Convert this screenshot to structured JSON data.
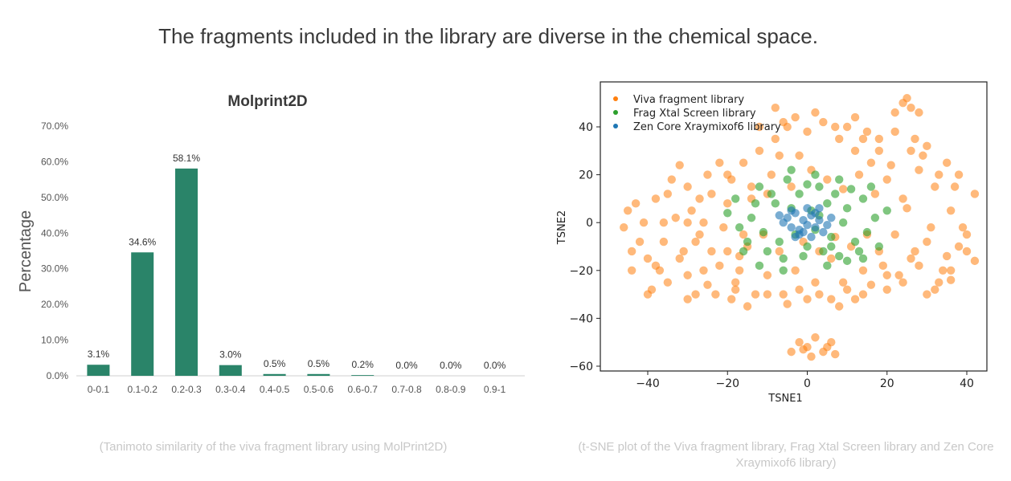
{
  "headline": "The fragments included in the library are diverse in the chemical space.",
  "captions": {
    "left": "(Tanimoto similarity of the viva fragment library using MolPrint2D)",
    "right": "(t-SNE plot of the Viva fragment library, Frag Xtal Screen library and Zen Core Xraymixof6 library)"
  },
  "chart_data": [
    {
      "type": "bar",
      "title": "Molprint2D",
      "ylabel": "Percentage",
      "xlabel": "",
      "categories": [
        "0-0.1",
        "0.1-0.2",
        "0.2-0.3",
        "0.3-0.4",
        "0.4-0.5",
        "0.5-0.6",
        "0.6-0.7",
        "0.7-0.8",
        "0.8-0.9",
        "0.9-1"
      ],
      "values": [
        3.1,
        34.6,
        58.1,
        3.0,
        0.5,
        0.5,
        0.2,
        0.0,
        0.0,
        0.0
      ],
      "value_labels": [
        "3.1%",
        "34.6%",
        "58.1%",
        "3.0%",
        "0.5%",
        "0.5%",
        "0.2%",
        "0.0%",
        "0.0%",
        "0.0%"
      ],
      "yticks": [
        "0.0%",
        "10.0%",
        "20.0%",
        "30.0%",
        "40.0%",
        "50.0%",
        "60.0%",
        "70.0%"
      ],
      "ylim": [
        0,
        70
      ],
      "grid": false,
      "color": "#2a8469"
    },
    {
      "type": "scatter",
      "xlabel": "TSNE1",
      "ylabel": "TSNE2",
      "xlim": [
        -52,
        45
      ],
      "ylim": [
        -62,
        58
      ],
      "xticks": [
        -40,
        -20,
        0,
        20,
        40
      ],
      "yticks": [
        -60,
        -40,
        -20,
        0,
        20,
        40
      ],
      "tick_labels_x": [
        "−40",
        "−20",
        "0",
        "20",
        "40"
      ],
      "tick_labels_y": [
        "−60",
        "−40",
        "−20",
        "0",
        "20",
        "40"
      ],
      "legend_position": "top-left",
      "grid": false,
      "series": [
        {
          "name": "Viva fragment library",
          "color": "#ff7f0e",
          "points": [
            [
              -45,
              5
            ],
            [
              -42,
              -8
            ],
            [
              -40,
              -15
            ],
            [
              -38,
              10
            ],
            [
              -35,
              -25
            ],
            [
              -33,
              2
            ],
            [
              -30,
              15
            ],
            [
              -28,
              -30
            ],
            [
              -27,
              -5
            ],
            [
              -25,
              20
            ],
            [
              -22,
              -18
            ],
            [
              -20,
              8
            ],
            [
              -18,
              -28
            ],
            [
              -16,
              25
            ],
            [
              -15,
              -10
            ],
            [
              -12,
              30
            ],
            [
              -10,
              -22
            ],
            [
              -8,
              35
            ],
            [
              -6,
              -30
            ],
            [
              -5,
              40
            ],
            [
              -3,
              -20
            ],
            [
              -2,
              28
            ],
            [
              0,
              38
            ],
            [
              2,
              -25
            ],
            [
              4,
              42
            ],
            [
              6,
              -15
            ],
            [
              8,
              35
            ],
            [
              10,
              -28
            ],
            [
              12,
              30
            ],
            [
              14,
              -20
            ],
            [
              16,
              25
            ],
            [
              18,
              -12
            ],
            [
              20,
              18
            ],
            [
              22,
              -5
            ],
            [
              24,
              10
            ],
            [
              26,
              -15
            ],
            [
              28,
              22
            ],
            [
              30,
              -8
            ],
            [
              32,
              15
            ],
            [
              34,
              -20
            ],
            [
              36,
              5
            ],
            [
              38,
              -10
            ],
            [
              40,
              -5
            ],
            [
              42,
              12
            ],
            [
              -44,
              -12
            ],
            [
              -41,
              0
            ],
            [
              -37,
              -20
            ],
            [
              -34,
              18
            ],
            [
              -31,
              -12
            ],
            [
              -29,
              5
            ],
            [
              -26,
              -20
            ],
            [
              -24,
              12
            ],
            [
              -21,
              -2
            ],
            [
              -19,
              18
            ],
            [
              -17,
              -14
            ],
            [
              -14,
              10
            ],
            [
              -11,
              -5
            ],
            [
              -9,
              20
            ],
            [
              -7,
              -12
            ],
            [
              -4,
              15
            ],
            [
              -1,
              -8
            ],
            [
              1,
              22
            ],
            [
              3,
              -12
            ],
            [
              5,
              18
            ],
            [
              7,
              -6
            ],
            [
              9,
              14
            ],
            [
              11,
              -10
            ],
            [
              13,
              20
            ],
            [
              15,
              -5
            ],
            [
              17,
              12
            ],
            [
              19,
              -18
            ],
            [
              21,
              24
            ],
            [
              23,
              -22
            ],
            [
              25,
              6
            ],
            [
              27,
              -12
            ],
            [
              29,
              28
            ],
            [
              31,
              -2
            ],
            [
              33,
              20
            ],
            [
              35,
              -14
            ],
            [
              37,
              15
            ],
            [
              39,
              -2
            ],
            [
              -46,
              -2
            ],
            [
              -43,
              8
            ],
            [
              -39,
              -28
            ],
            [
              -36,
              -8
            ],
            [
              -32,
              24
            ],
            [
              -30,
              -22
            ],
            [
              -27,
              10
            ],
            [
              -23,
              -30
            ],
            [
              -20,
              -12
            ],
            [
              -17,
              -20
            ],
            [
              -13,
              -30
            ],
            [
              -10,
              12
            ],
            [
              -7,
              28
            ],
            [
              -5,
              -34
            ],
            [
              -2,
              -28
            ],
            [
              0,
              -32
            ],
            [
              3,
              -30
            ],
            [
              6,
              -32
            ],
            [
              9,
              -25
            ],
            [
              12,
              -32
            ],
            [
              16,
              -26
            ],
            [
              20,
              -28
            ],
            [
              24,
              -25
            ],
            [
              28,
              -18
            ],
            [
              32,
              -28
            ],
            [
              36,
              -20
            ],
            [
              -8,
              48
            ],
            [
              -3,
              44
            ],
            [
              2,
              46
            ],
            [
              7,
              40
            ],
            [
              12,
              44
            ],
            [
              18,
              35
            ],
            [
              22,
              38
            ],
            [
              26,
              30
            ],
            [
              30,
              32
            ],
            [
              24,
              50
            ],
            [
              26,
              48
            ],
            [
              28,
              46
            ],
            [
              22,
              46
            ],
            [
              25,
              52
            ],
            [
              -2,
              -50
            ],
            [
              0,
              -52
            ],
            [
              2,
              -48
            ],
            [
              4,
              -54
            ],
            [
              6,
              -50
            ],
            [
              -4,
              -54
            ],
            [
              1,
              -56
            ],
            [
              5,
              -52
            ],
            [
              7,
              -55
            ],
            [
              -1,
              -53
            ],
            [
              -30,
              -32
            ],
            [
              -25,
              -26
            ],
            [
              -15,
              -35
            ],
            [
              -38,
              -18
            ],
            [
              -44,
              -20
            ],
            [
              -40,
              -30
            ],
            [
              -32,
              -15
            ],
            [
              -26,
              0
            ],
            [
              -22,
              25
            ],
            [
              -14,
              15
            ],
            [
              -24,
              -12
            ],
            [
              -19,
              -32
            ],
            [
              15,
              38
            ],
            [
              10,
              40
            ],
            [
              -12,
              40
            ],
            [
              -6,
              42
            ],
            [
              35,
              25
            ],
            [
              38,
              20
            ],
            [
              40,
              -12
            ],
            [
              42,
              -16
            ],
            [
              33,
              -25
            ],
            [
              27,
              35
            ],
            [
              18,
              30
            ],
            [
              14,
              35
            ],
            [
              -35,
              12
            ],
            [
              -30,
              0
            ],
            [
              -28,
              -8
            ],
            [
              -36,
              0
            ],
            [
              -20,
              20
            ],
            [
              -16,
              -5
            ],
            [
              36,
              -24
            ],
            [
              30,
              -30
            ],
            [
              20,
              -22
            ],
            [
              14,
              -30
            ],
            [
              8,
              -35
            ],
            [
              -10,
              -30
            ],
            [
              -18,
              -25
            ]
          ]
        },
        {
          "name": "Frag Xtal Screen library",
          "color": "#2ca02c",
          "points": [
            [
              -18,
              10
            ],
            [
              -15,
              -8
            ],
            [
              -12,
              15
            ],
            [
              -10,
              -12
            ],
            [
              -8,
              8
            ],
            [
              -6,
              -15
            ],
            [
              -5,
              18
            ],
            [
              -3,
              -5
            ],
            [
              -2,
              12
            ],
            [
              0,
              -10
            ],
            [
              1,
              5
            ],
            [
              2,
              -3
            ],
            [
              3,
              15
            ],
            [
              4,
              -12
            ],
            [
              5,
              8
            ],
            [
              6,
              -6
            ],
            [
              7,
              12
            ],
            [
              8,
              -14
            ],
            [
              10,
              6
            ],
            [
              12,
              -8
            ],
            [
              14,
              10
            ],
            [
              15,
              -4
            ],
            [
              16,
              15
            ],
            [
              -14,
              2
            ],
            [
              -11,
              -4
            ],
            [
              -9,
              12
            ],
            [
              -7,
              -8
            ],
            [
              -4,
              6
            ],
            [
              -1,
              -14
            ],
            [
              0,
              16
            ],
            [
              3,
              3
            ],
            [
              6,
              -10
            ],
            [
              9,
              0
            ],
            [
              11,
              14
            ],
            [
              13,
              -12
            ],
            [
              17,
              2
            ],
            [
              -16,
              -12
            ],
            [
              -13,
              8
            ],
            [
              20,
              5
            ],
            [
              18,
              -10
            ],
            [
              -20,
              4
            ],
            [
              -17,
              -2
            ],
            [
              -4,
              22
            ],
            [
              2,
              20
            ],
            [
              8,
              18
            ],
            [
              14,
              -15
            ],
            [
              -12,
              -18
            ],
            [
              -6,
              -20
            ],
            [
              5,
              -18
            ],
            [
              10,
              -16
            ]
          ]
        },
        {
          "name": "Zen Core Xraymixof6 library",
          "color": "#1f77b4",
          "points": [
            [
              -5,
              2
            ],
            [
              -4,
              -2
            ],
            [
              -3,
              4
            ],
            [
              -2,
              -3
            ],
            [
              -1,
              1
            ],
            [
              0,
              -1
            ],
            [
              1,
              3
            ],
            [
              2,
              -2
            ],
            [
              3,
              1
            ],
            [
              4,
              -4
            ],
            [
              -6,
              0
            ],
            [
              -4,
              5
            ],
            [
              -2,
              -5
            ],
            [
              0,
              6
            ],
            [
              2,
              4
            ],
            [
              5,
              -1
            ],
            [
              -1,
              -4
            ],
            [
              1,
              -6
            ],
            [
              3,
              6
            ],
            [
              6,
              2
            ],
            [
              -3,
              -6
            ],
            [
              -7,
              3
            ]
          ]
        }
      ]
    }
  ]
}
